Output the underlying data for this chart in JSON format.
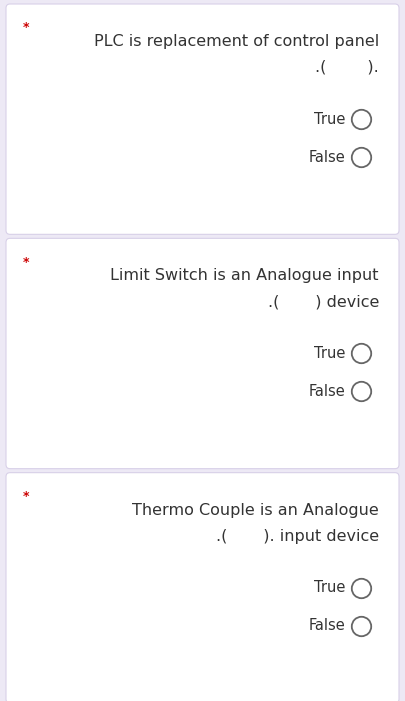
{
  "background_color": "#ede9f5",
  "card_color": "#ffffff",
  "card_border_color": "#d8d0e8",
  "text_color": "#333333",
  "star_color": "#cc0000",
  "circle_color": "#666666",
  "questions": [
    {
      "star": "*",
      "line1": "PLC is replacement of control panel",
      "line2": ".(        ).",
      "options": [
        "True",
        "False"
      ]
    },
    {
      "star": "*",
      "line1": "Limit Switch is an Analogue input",
      "line2": ".(       ) device",
      "options": [
        "True",
        "False"
      ]
    },
    {
      "star": "*",
      "line1": "Thermo Couple is an Analogue",
      "line2": ".(       ). input device",
      "options": [
        "True",
        "False"
      ]
    }
  ],
  "figsize": [
    4.05,
    7.01
  ],
  "dpi": 100
}
